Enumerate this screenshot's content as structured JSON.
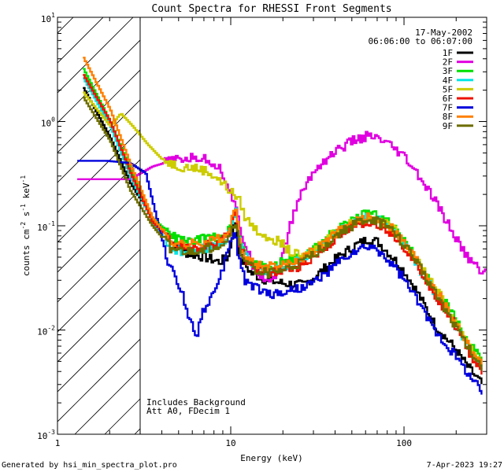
{
  "chart_data": {
    "type": "line",
    "title": "Count Spectra for RHESSI Front Segments",
    "xlabel": "Energy (keV)",
    "ylabel_parts": [
      "counts cm",
      "-2",
      " s",
      "-1",
      " keV",
      "-1"
    ],
    "xscale": "log",
    "yscale": "log",
    "xlim": [
      1.0,
      300.0
    ],
    "ylim": [
      0.001,
      10.0
    ],
    "x_ticks": [
      {
        "value": 1,
        "label": "1"
      },
      {
        "value": 10,
        "label": "10"
      },
      {
        "value": 100,
        "label": "100"
      }
    ],
    "y_ticks": [
      {
        "value": 0.001,
        "base": "10",
        "exp": "-3"
      },
      {
        "value": 0.01,
        "base": "10",
        "exp": "-2"
      },
      {
        "value": 0.1,
        "base": "10",
        "exp": "-1"
      },
      {
        "value": 1,
        "base": "10",
        "exp": "0"
      },
      {
        "value": 10,
        "base": "10",
        "exp": "1"
      }
    ],
    "attenuator_cutoff_kev": 3.0,
    "date": "17-May-2002",
    "time_range": "06:06:00 to 06:07:00",
    "annotations": [
      "Includes Background",
      "Att A0, FDecim 1"
    ],
    "legend_position": "top-right",
    "series": [
      {
        "name": "1F",
        "color": "#000000",
        "points": [
          [
            1.4,
            2.1
          ],
          [
            2.0,
            0.7
          ],
          [
            2.6,
            0.26
          ],
          [
            3.5,
            0.12
          ],
          [
            4.5,
            0.07
          ],
          [
            5.5,
            0.055
          ],
          [
            7,
            0.05
          ],
          [
            8.5,
            0.045
          ],
          [
            9.6,
            0.05
          ],
          [
            10.2,
            0.09
          ],
          [
            10.6,
            0.11
          ],
          [
            11.2,
            0.05
          ],
          [
            13,
            0.035
          ],
          [
            16,
            0.03
          ],
          [
            20,
            0.028
          ],
          [
            26,
            0.027
          ],
          [
            32,
            0.035
          ],
          [
            40,
            0.048
          ],
          [
            52,
            0.065
          ],
          [
            62,
            0.075
          ],
          [
            70,
            0.07
          ],
          [
            85,
            0.05
          ],
          [
            100,
            0.036
          ],
          [
            120,
            0.022
          ],
          [
            150,
            0.011
          ],
          [
            190,
            0.007
          ],
          [
            230,
            0.0045
          ],
          [
            280,
            0.003
          ]
        ]
      },
      {
        "name": "2F",
        "color": "#e000e0",
        "points": [
          [
            1.3,
            0.28
          ],
          [
            1.9,
            0.28
          ],
          [
            2.6,
            0.28
          ],
          [
            3.5,
            0.37
          ],
          [
            4.5,
            0.42
          ],
          [
            5.5,
            0.44
          ],
          [
            6.5,
            0.45
          ],
          [
            7.5,
            0.42
          ],
          [
            8.5,
            0.36
          ],
          [
            9.5,
            0.25
          ],
          [
            10.5,
            0.15
          ],
          [
            11.5,
            0.08
          ],
          [
            13,
            0.045
          ],
          [
            15,
            0.032
          ],
          [
            17,
            0.03
          ],
          [
            19,
            0.04
          ],
          [
            21,
            0.08
          ],
          [
            24,
            0.17
          ],
          [
            28,
            0.28
          ],
          [
            32,
            0.38
          ],
          [
            40,
            0.52
          ],
          [
            50,
            0.65
          ],
          [
            60,
            0.72
          ],
          [
            70,
            0.68
          ],
          [
            80,
            0.6
          ],
          [
            100,
            0.45
          ],
          [
            120,
            0.3
          ],
          [
            150,
            0.17
          ],
          [
            180,
            0.1
          ],
          [
            220,
            0.055
          ],
          [
            260,
            0.04
          ],
          [
            300,
            0.035
          ]
        ]
      },
      {
        "name": "3F",
        "color": "#00e000",
        "points": [
          [
            1.4,
            3.2
          ],
          [
            2.0,
            1.0
          ],
          [
            2.6,
            0.35
          ],
          [
            3.5,
            0.12
          ],
          [
            4.5,
            0.08
          ],
          [
            5.5,
            0.07
          ],
          [
            7,
            0.075
          ],
          [
            8.5,
            0.08
          ],
          [
            9.6,
            0.09
          ],
          [
            10.2,
            0.13
          ],
          [
            10.6,
            0.15
          ],
          [
            11.2,
            0.07
          ],
          [
            13,
            0.045
          ],
          [
            16,
            0.04
          ],
          [
            20,
            0.045
          ],
          [
            26,
            0.05
          ],
          [
            32,
            0.065
          ],
          [
            40,
            0.09
          ],
          [
            52,
            0.12
          ],
          [
            62,
            0.13
          ],
          [
            70,
            0.125
          ],
          [
            85,
            0.1
          ],
          [
            100,
            0.07
          ],
          [
            120,
            0.045
          ],
          [
            150,
            0.025
          ],
          [
            190,
            0.014
          ],
          [
            230,
            0.008
          ],
          [
            280,
            0.005
          ]
        ]
      },
      {
        "name": "4F",
        "color": "#00e5e5",
        "points": [
          [
            1.4,
            2.6
          ],
          [
            2.0,
            0.9
          ],
          [
            2.6,
            0.3
          ],
          [
            3.5,
            0.11
          ],
          [
            4.5,
            0.06
          ],
          [
            5.5,
            0.055
          ],
          [
            7,
            0.06
          ],
          [
            8.5,
            0.065
          ],
          [
            9.6,
            0.08
          ],
          [
            10.2,
            0.12
          ],
          [
            10.6,
            0.14
          ],
          [
            11.2,
            0.065
          ],
          [
            13,
            0.04
          ],
          [
            16,
            0.037
          ],
          [
            20,
            0.04
          ],
          [
            26,
            0.048
          ],
          [
            32,
            0.06
          ],
          [
            40,
            0.085
          ],
          [
            52,
            0.11
          ],
          [
            62,
            0.12
          ],
          [
            70,
            0.115
          ],
          [
            85,
            0.09
          ],
          [
            100,
            0.065
          ],
          [
            120,
            0.04
          ],
          [
            150,
            0.022
          ],
          [
            190,
            0.012
          ],
          [
            230,
            0.007
          ],
          [
            280,
            0.0045
          ]
        ]
      },
      {
        "name": "5F",
        "color": "#cccc00",
        "points": [
          [
            1.4,
            1.9
          ],
          [
            2.0,
            0.9
          ],
          [
            2.3,
            1.2
          ],
          [
            2.7,
            0.9
          ],
          [
            3.3,
            0.6
          ],
          [
            4,
            0.43
          ],
          [
            5,
            0.37
          ],
          [
            6,
            0.36
          ],
          [
            7,
            0.34
          ],
          [
            8,
            0.3
          ],
          [
            9,
            0.25
          ],
          [
            10,
            0.21
          ],
          [
            11,
            0.18
          ],
          [
            12,
            0.12
          ],
          [
            14,
            0.09
          ],
          [
            16,
            0.08
          ],
          [
            19,
            0.07
          ],
          [
            22,
            0.055
          ],
          [
            26,
            0.05
          ],
          [
            32,
            0.065
          ],
          [
            40,
            0.09
          ],
          [
            52,
            0.11
          ],
          [
            62,
            0.12
          ],
          [
            70,
            0.115
          ],
          [
            85,
            0.095
          ],
          [
            100,
            0.07
          ],
          [
            120,
            0.045
          ],
          [
            150,
            0.026
          ],
          [
            190,
            0.013
          ],
          [
            230,
            0.008
          ],
          [
            280,
            0.0045
          ]
        ]
      },
      {
        "name": "6F",
        "color": "#ee1100",
        "points": [
          [
            1.4,
            2.8
          ],
          [
            2.0,
            1.0
          ],
          [
            2.6,
            0.33
          ],
          [
            3.5,
            0.11
          ],
          [
            4.5,
            0.07
          ],
          [
            5.5,
            0.06
          ],
          [
            7,
            0.065
          ],
          [
            8.5,
            0.07
          ],
          [
            9.6,
            0.085
          ],
          [
            10.2,
            0.12
          ],
          [
            10.6,
            0.13
          ],
          [
            11.2,
            0.06
          ],
          [
            13,
            0.04
          ],
          [
            16,
            0.035
          ],
          [
            20,
            0.037
          ],
          [
            26,
            0.042
          ],
          [
            32,
            0.055
          ],
          [
            40,
            0.075
          ],
          [
            52,
            0.1
          ],
          [
            62,
            0.11
          ],
          [
            70,
            0.105
          ],
          [
            85,
            0.085
          ],
          [
            100,
            0.062
          ],
          [
            120,
            0.04
          ],
          [
            150,
            0.022
          ],
          [
            190,
            0.012
          ],
          [
            230,
            0.0065
          ],
          [
            280,
            0.004
          ]
        ]
      },
      {
        "name": "7F",
        "color": "#0000dd",
        "points": [
          [
            1.3,
            0.42
          ],
          [
            1.9,
            0.42
          ],
          [
            2.6,
            0.4
          ],
          [
            3.2,
            0.32
          ],
          [
            3.8,
            0.1
          ],
          [
            4.3,
            0.045
          ],
          [
            4.8,
            0.03
          ],
          [
            5.3,
            0.02
          ],
          [
            5.8,
            0.012
          ],
          [
            6.3,
            0.009
          ],
          [
            6.8,
            0.015
          ],
          [
            7.5,
            0.02
          ],
          [
            8.3,
            0.025
          ],
          [
            9,
            0.04
          ],
          [
            9.8,
            0.07
          ],
          [
            10.4,
            0.09
          ],
          [
            11,
            0.05
          ],
          [
            12,
            0.03
          ],
          [
            14,
            0.025
          ],
          [
            17,
            0.022
          ],
          [
            20,
            0.023
          ],
          [
            24,
            0.025
          ],
          [
            28,
            0.027
          ],
          [
            34,
            0.033
          ],
          [
            40,
            0.042
          ],
          [
            50,
            0.055
          ],
          [
            62,
            0.062
          ],
          [
            70,
            0.058
          ],
          [
            85,
            0.042
          ],
          [
            100,
            0.03
          ],
          [
            120,
            0.018
          ],
          [
            150,
            0.01
          ],
          [
            190,
            0.006
          ],
          [
            230,
            0.004
          ],
          [
            280,
            0.0025
          ]
        ]
      },
      {
        "name": "8F",
        "color": "#ff7f00",
        "points": [
          [
            1.4,
            4.1
          ],
          [
            2.0,
            1.3
          ],
          [
            2.6,
            0.4
          ],
          [
            3.5,
            0.12
          ],
          [
            4.5,
            0.07
          ],
          [
            5.5,
            0.065
          ],
          [
            7,
            0.07
          ],
          [
            8.5,
            0.075
          ],
          [
            9.6,
            0.085
          ],
          [
            10.2,
            0.12
          ],
          [
            10.6,
            0.14
          ],
          [
            11.2,
            0.065
          ],
          [
            13,
            0.045
          ],
          [
            16,
            0.04
          ],
          [
            20,
            0.042
          ],
          [
            26,
            0.05
          ],
          [
            32,
            0.062
          ],
          [
            40,
            0.085
          ],
          [
            52,
            0.11
          ],
          [
            62,
            0.12
          ],
          [
            70,
            0.115
          ],
          [
            85,
            0.095
          ],
          [
            100,
            0.068
          ],
          [
            120,
            0.045
          ],
          [
            150,
            0.025
          ],
          [
            190,
            0.013
          ],
          [
            230,
            0.0075
          ],
          [
            280,
            0.0045
          ]
        ]
      },
      {
        "name": "9F",
        "color": "#6e6e00",
        "points": [
          [
            1.4,
            1.7
          ],
          [
            2.0,
            0.65
          ],
          [
            2.6,
            0.22
          ],
          [
            3.5,
            0.1
          ],
          [
            4.5,
            0.06
          ],
          [
            5.5,
            0.055
          ],
          [
            7,
            0.06
          ],
          [
            8.5,
            0.065
          ],
          [
            9.6,
            0.075
          ],
          [
            10.2,
            0.1
          ],
          [
            10.6,
            0.11
          ],
          [
            11.2,
            0.055
          ],
          [
            13,
            0.04
          ],
          [
            16,
            0.035
          ],
          [
            20,
            0.037
          ],
          [
            26,
            0.045
          ],
          [
            32,
            0.058
          ],
          [
            40,
            0.08
          ],
          [
            52,
            0.105
          ],
          [
            62,
            0.115
          ],
          [
            70,
            0.11
          ],
          [
            85,
            0.09
          ],
          [
            100,
            0.065
          ],
          [
            120,
            0.042
          ],
          [
            150,
            0.023
          ],
          [
            190,
            0.012
          ],
          [
            230,
            0.007
          ],
          [
            280,
            0.0042
          ]
        ]
      }
    ]
  },
  "footer": {
    "generated_by": "Generated by hsi_min_spectra_plot.pro",
    "timestamp": "7-Apr-2023 19:27"
  }
}
